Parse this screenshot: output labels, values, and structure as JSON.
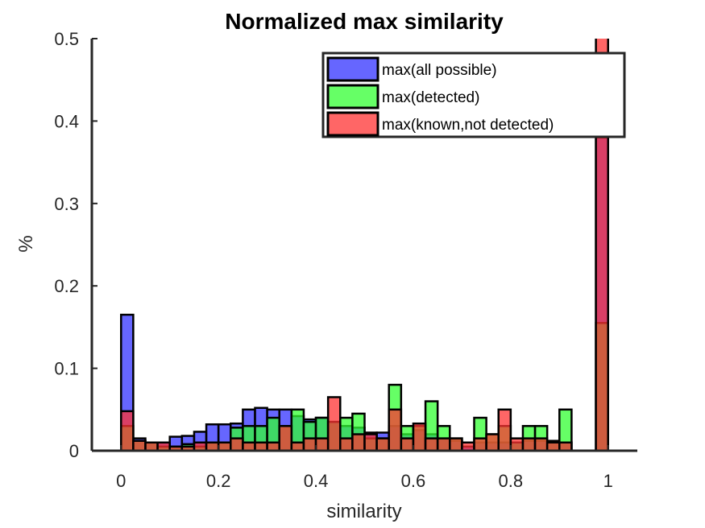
{
  "chart_data": {
    "type": "bar",
    "title": "Normalized max similarity",
    "xlabel": "similarity",
    "ylabel": "%",
    "xlim": [
      -0.06,
      1.06
    ],
    "ylim": [
      0,
      0.5
    ],
    "xticks": [
      "0",
      "0.2",
      "0.4",
      "0.6",
      "0.8",
      "1"
    ],
    "yticks": [
      "0",
      "0.1",
      "0.2",
      "0.3",
      "0.4",
      "0.5"
    ],
    "grid": false,
    "legend_position": "top-right",
    "bin_width": 0.025,
    "bin_starts": [
      0,
      0.025,
      0.05,
      0.075,
      0.1,
      0.125,
      0.15,
      0.175,
      0.2,
      0.225,
      0.25,
      0.275,
      0.3,
      0.325,
      0.35,
      0.375,
      0.4,
      0.425,
      0.45,
      0.475,
      0.5,
      0.525,
      0.55,
      0.575,
      0.6,
      0.625,
      0.65,
      0.675,
      0.7,
      0.725,
      0.75,
      0.775,
      0.8,
      0.825,
      0.85,
      0.875,
      0.9,
      0.925,
      0.95,
      0.975
    ],
    "series": [
      {
        "name": "max(all possible)",
        "color": "#3333ff",
        "values": [
          0.165,
          0.015,
          0.01,
          0.01,
          0.017,
          0.018,
          0.023,
          0.032,
          0.032,
          0.033,
          0.05,
          0.052,
          0.05,
          0.05,
          0.042,
          0.038,
          0.04,
          0.035,
          0.03,
          0.028,
          0.022,
          0.022,
          0.03,
          0.02,
          0.025,
          0.02,
          0.015,
          0.012,
          0.005,
          0.01,
          0.01,
          0.01,
          0.01,
          0.012,
          0.012,
          0.01,
          0.01,
          0,
          0,
          0.38
        ]
      },
      {
        "name": "max(detected)",
        "color": "#33ff33",
        "values": [
          0.03,
          0.012,
          0.01,
          0.005,
          0.005,
          0.008,
          0.005,
          0.01,
          0.01,
          0.028,
          0.03,
          0.03,
          0.04,
          0.03,
          0.05,
          0.035,
          0.04,
          0.035,
          0.04,
          0.045,
          0.015,
          0.015,
          0.08,
          0.03,
          0.03,
          0.06,
          0.03,
          0.015,
          0,
          0.04,
          0.02,
          0.03,
          0.01,
          0.03,
          0.03,
          0.012,
          0.05,
          0,
          0,
          0.155
        ]
      },
      {
        "name": "max(known,not detected)",
        "color": "#ff3333",
        "values": [
          0.048,
          0.012,
          0.01,
          0.01,
          0.005,
          0.005,
          0.01,
          0.01,
          0.01,
          0.015,
          0.01,
          0.01,
          0.01,
          0.03,
          0.01,
          0.015,
          0.015,
          0.065,
          0.015,
          0.02,
          0.02,
          0.015,
          0.05,
          0.015,
          0.033,
          0.015,
          0.015,
          0.015,
          0.01,
          0.015,
          0.02,
          0.05,
          0.015,
          0.015,
          0.015,
          0.01,
          0.01,
          0,
          0,
          0.53
        ]
      }
    ]
  }
}
